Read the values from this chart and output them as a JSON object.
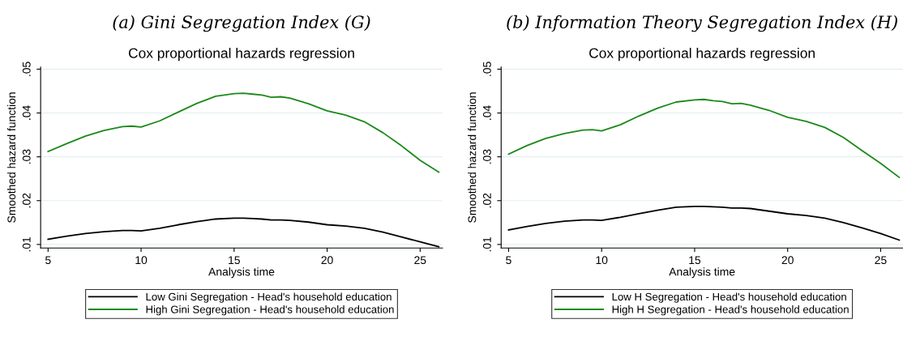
{
  "chart_data": [
    {
      "type": "line",
      "title": "(a) Gini Segregation Index (G)",
      "subtitle": "Cox proportional hazards regression",
      "xlabel": "Analysis time",
      "ylabel": "Smoothed hazard function",
      "x": [
        5,
        6,
        7,
        8,
        9,
        9.5,
        10,
        11,
        12,
        13,
        14,
        15,
        15.5,
        16,
        16.5,
        17,
        17.5,
        18,
        19,
        20,
        21,
        22,
        23,
        24,
        25,
        26
      ],
      "series": [
        {
          "name": "Low Gini Segregation - Head's household education",
          "color": "#000000",
          "values": [
            0.0112,
            0.0119,
            0.0125,
            0.0129,
            0.0132,
            0.0132,
            0.0131,
            0.0137,
            0.0145,
            0.0152,
            0.0158,
            0.016,
            0.016,
            0.0159,
            0.0158,
            0.0156,
            0.0156,
            0.0155,
            0.0151,
            0.0145,
            0.0142,
            0.0137,
            0.0128,
            0.0117,
            0.0106,
            0.0095
          ]
        },
        {
          "name": "High Gini Segregation - Head's household education",
          "color": "#1a8a1a",
          "values": [
            0.0312,
            0.033,
            0.0347,
            0.036,
            0.0369,
            0.037,
            0.0368,
            0.0382,
            0.0402,
            0.0422,
            0.0438,
            0.0444,
            0.0445,
            0.0443,
            0.0441,
            0.0436,
            0.0437,
            0.0434,
            0.0421,
            0.0405,
            0.0395,
            0.038,
            0.0355,
            0.0325,
            0.0292,
            0.0265
          ]
        }
      ],
      "xlim": [
        4.6,
        26.2
      ],
      "ylim": [
        0.0092,
        0.0505
      ],
      "xticks": [
        5,
        10,
        15,
        20,
        25
      ],
      "yticks": [
        {
          "value": 0.01,
          "label": ".01"
        },
        {
          "value": 0.02,
          "label": ".02"
        },
        {
          "value": 0.03,
          "label": ".03"
        },
        {
          "value": 0.04,
          "label": ".04"
        },
        {
          "value": 0.05,
          "label": ".05"
        }
      ],
      "grid": "y",
      "legend": "bottom",
      "line_style": "solid",
      "marker": "none"
    },
    {
      "type": "line",
      "title": "(b) Information Theory Segregation Index (H)",
      "subtitle": "Cox proportional hazards regression",
      "xlabel": "Analysis time",
      "ylabel": "Smoothed hazard function",
      "x": [
        5,
        6,
        7,
        8,
        9,
        9.5,
        10,
        11,
        12,
        13,
        14,
        15,
        15.5,
        16,
        16.5,
        17,
        17.5,
        18,
        19,
        20,
        21,
        22,
        23,
        24,
        25,
        26
      ],
      "series": [
        {
          "name": "Low H Segregation - Head's household education",
          "color": "#000000",
          "values": [
            0.0133,
            0.0141,
            0.0148,
            0.0153,
            0.0156,
            0.0156,
            0.0155,
            0.0162,
            0.017,
            0.0178,
            0.0185,
            0.0187,
            0.0187,
            0.0186,
            0.0185,
            0.0183,
            0.0183,
            0.0182,
            0.0176,
            0.017,
            0.0166,
            0.016,
            0.015,
            0.0138,
            0.0125,
            0.011
          ]
        },
        {
          "name": "High H Segregation - Head's household education",
          "color": "#1a8a1a",
          "values": [
            0.0306,
            0.0326,
            0.0342,
            0.0353,
            0.0361,
            0.0362,
            0.0359,
            0.0373,
            0.0393,
            0.0411,
            0.0425,
            0.043,
            0.0431,
            0.0428,
            0.0426,
            0.0421,
            0.0422,
            0.0418,
            0.0406,
            0.039,
            0.0381,
            0.0367,
            0.0344,
            0.0314,
            0.0285,
            0.0253
          ]
        }
      ],
      "xlim": [
        4.6,
        26.2
      ],
      "ylim": [
        0.0092,
        0.0505
      ],
      "xticks": [
        5,
        10,
        15,
        20,
        25
      ],
      "yticks": [
        {
          "value": 0.01,
          "label": ".01"
        },
        {
          "value": 0.02,
          "label": ".02"
        },
        {
          "value": 0.03,
          "label": ".03"
        },
        {
          "value": 0.04,
          "label": ".04"
        },
        {
          "value": 0.05,
          "label": ".05"
        }
      ],
      "grid": "y",
      "legend": "bottom",
      "line_style": "solid",
      "marker": "none"
    }
  ]
}
